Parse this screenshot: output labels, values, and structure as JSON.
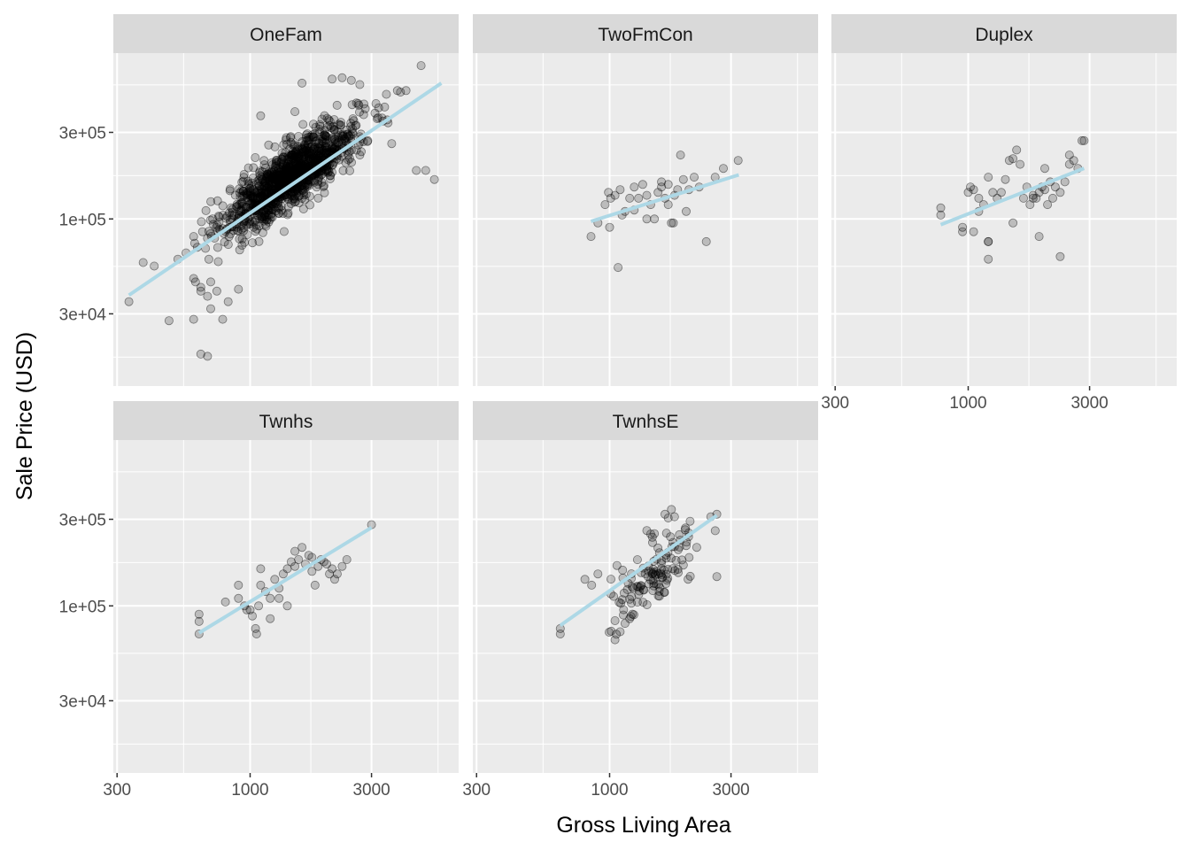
{
  "chart_data": {
    "type": "scatter",
    "facet_by": "building type",
    "xlabel": "Gross Living Area",
    "ylabel": "Sale Price (USD)",
    "x_scale": "log10",
    "y_scale": "log10",
    "xlim": [
      290,
      6600
    ],
    "ylim": [
      12000,
      820000
    ],
    "x_ticks": [
      {
        "value": 300,
        "label": "300"
      },
      {
        "value": 1000,
        "label": "1000"
      },
      {
        "value": 3000,
        "label": "3000"
      }
    ],
    "y_ticks": [
      {
        "value": 30000,
        "label": "3e+04"
      },
      {
        "value": 100000,
        "label": "1e+05"
      },
      {
        "value": 300000,
        "label": "3e+05"
      }
    ],
    "grid": true,
    "point_color": "#000000",
    "point_opacity": 0.2,
    "fit_line_color": "#add8e6",
    "panel_background": "#ebebeb",
    "strip_background": "#d9d9d9",
    "facets": [
      {
        "name": "OneFam",
        "fit_line": [
          [
            334,
            38000
          ],
          [
            5642,
            560000
          ]
        ],
        "point_cloud": {
          "count": 1200,
          "log_x_mean": 3.16,
          "log_x_sd": 0.13,
          "slope": 0.97,
          "intercept": 2.17,
          "resid_sd": 0.085
        },
        "points": [
          [
            334,
            35000
          ],
          [
            480,
            27500
          ],
          [
            640,
            18000
          ],
          [
            680,
            17500
          ],
          [
            420,
            55000
          ],
          [
            520,
            60000
          ],
          [
            560,
            65000
          ],
          [
            600,
            47000
          ],
          [
            610,
            45000
          ],
          [
            640,
            42000
          ],
          [
            680,
            37500
          ],
          [
            700,
            45000
          ],
          [
            740,
            40000
          ],
          [
            640,
            40000
          ],
          [
            380,
            57500
          ],
          [
            600,
            28000
          ],
          [
            700,
            32000
          ],
          [
            780,
            28000
          ],
          [
            820,
            35000
          ],
          [
            900,
            41000
          ],
          [
            600,
            80000
          ],
          [
            650,
            85000
          ],
          [
            4500,
            185000
          ],
          [
            4900,
            185000
          ],
          [
            5300,
            165000
          ],
          [
            4700,
            700000
          ],
          [
            3200,
            410000
          ],
          [
            3600,
            260000
          ],
          [
            2900,
            270000
          ],
          [
            2500,
            580000
          ],
          [
            2700,
            550000
          ],
          [
            2300,
            600000
          ],
          [
            2100,
            590000
          ],
          [
            3900,
            500000
          ],
          [
            4100,
            510000
          ],
          [
            1500,
            390000
          ],
          [
            1600,
            560000
          ],
          [
            1100,
            370000
          ],
          [
            2800,
            430000
          ],
          [
            3300,
            360000
          ]
        ]
      },
      {
        "name": "TwoFmCon",
        "fit_line": [
          [
            845,
            97000
          ],
          [
            3219,
            175000
          ]
        ],
        "points": [
          [
            845,
            80000
          ],
          [
            1080,
            54000
          ],
          [
            960,
            120000
          ],
          [
            990,
            140000
          ],
          [
            1010,
            130000
          ],
          [
            1050,
            135000
          ],
          [
            1100,
            145000
          ],
          [
            1150,
            110000
          ],
          [
            1200,
            130000
          ],
          [
            1250,
            150000
          ],
          [
            1300,
            130000
          ],
          [
            1350,
            155000
          ],
          [
            1400,
            135000
          ],
          [
            1450,
            120000
          ],
          [
            1500,
            100000
          ],
          [
            1550,
            140000
          ],
          [
            1600,
            150000
          ],
          [
            1650,
            130000
          ],
          [
            1700,
            120000
          ],
          [
            1750,
            95000
          ],
          [
            1780,
            95000
          ],
          [
            1800,
            135000
          ],
          [
            1850,
            145000
          ],
          [
            1900,
            225000
          ],
          [
            1950,
            165000
          ],
          [
            2000,
            110000
          ],
          [
            2050,
            145000
          ],
          [
            2150,
            170000
          ],
          [
            2250,
            150000
          ],
          [
            2400,
            75000
          ],
          [
            2600,
            170000
          ],
          [
            2800,
            190000
          ],
          [
            3200,
            210000
          ],
          [
            1000,
            90000
          ],
          [
            1120,
            105000
          ],
          [
            1250,
            112000
          ],
          [
            1400,
            100000
          ],
          [
            1600,
            160000
          ],
          [
            1700,
            155000
          ],
          [
            900,
            95000
          ]
        ]
      },
      {
        "name": "Duplex",
        "fit_line": [
          [
            780,
            93000
          ],
          [
            2854,
            190000
          ]
        ],
        "points": [
          [
            780,
            105000
          ],
          [
            780,
            115000
          ],
          [
            950,
            85000
          ],
          [
            950,
            90000
          ],
          [
            1000,
            140000
          ],
          [
            1020,
            150000
          ],
          [
            1050,
            145000
          ],
          [
            1100,
            130000
          ],
          [
            1100,
            110000
          ],
          [
            1150,
            120000
          ],
          [
            1200,
            60000
          ],
          [
            1200,
            75000
          ],
          [
            1200,
            75000
          ],
          [
            1250,
            140000
          ],
          [
            1300,
            130000
          ],
          [
            1350,
            140000
          ],
          [
            1400,
            165000
          ],
          [
            1450,
            210000
          ],
          [
            1500,
            215000
          ],
          [
            1550,
            240000
          ],
          [
            1600,
            200000
          ],
          [
            1650,
            130000
          ],
          [
            1700,
            150000
          ],
          [
            1750,
            120000
          ],
          [
            1800,
            135000
          ],
          [
            1850,
            130000
          ],
          [
            1900,
            140000
          ],
          [
            1950,
            150000
          ],
          [
            2000,
            145000
          ],
          [
            2050,
            120000
          ],
          [
            2100,
            160000
          ],
          [
            2150,
            130000
          ],
          [
            2200,
            150000
          ],
          [
            2300,
            140000
          ],
          [
            2400,
            160000
          ],
          [
            2500,
            200000
          ],
          [
            2600,
            210000
          ],
          [
            2700,
            190000
          ],
          [
            2800,
            270000
          ],
          [
            2854,
            270000
          ],
          [
            2300,
            62000
          ],
          [
            1900,
            80000
          ],
          [
            2000,
            190000
          ],
          [
            1500,
            95000
          ],
          [
            1050,
            85000
          ],
          [
            1200,
            170000
          ],
          [
            2500,
            225000
          ],
          [
            1800,
            130000
          ]
        ]
      },
      {
        "name": "Twnhs",
        "fit_line": [
          [
            630,
            71000
          ],
          [
            3000,
            270000
          ]
        ],
        "points": [
          [
            630,
            70000
          ],
          [
            630,
            82000
          ],
          [
            630,
            90000
          ],
          [
            800,
            105000
          ],
          [
            900,
            110000
          ],
          [
            950,
            100000
          ],
          [
            970,
            95000
          ],
          [
            1000,
            95000
          ],
          [
            1020,
            88000
          ],
          [
            1050,
            75000
          ],
          [
            1060,
            70000
          ],
          [
            1080,
            100000
          ],
          [
            1100,
            130000
          ],
          [
            1100,
            160000
          ],
          [
            1150,
            120000
          ],
          [
            1200,
            110000
          ],
          [
            1250,
            140000
          ],
          [
            1300,
            125000
          ],
          [
            1350,
            150000
          ],
          [
            1400,
            160000
          ],
          [
            1450,
            175000
          ],
          [
            1500,
            200000
          ],
          [
            1550,
            180000
          ],
          [
            1600,
            210000
          ],
          [
            1650,
            170000
          ],
          [
            1700,
            190000
          ],
          [
            1750,
            155000
          ],
          [
            1800,
            130000
          ],
          [
            1850,
            165000
          ],
          [
            1900,
            180000
          ],
          [
            1950,
            175000
          ],
          [
            2000,
            170000
          ],
          [
            2050,
            150000
          ],
          [
            2100,
            160000
          ],
          [
            2150,
            140000
          ],
          [
            2200,
            150000
          ],
          [
            2300,
            165000
          ],
          [
            2400,
            180000
          ],
          [
            3000,
            280000
          ],
          [
            1300,
            110000
          ],
          [
            1400,
            100000
          ],
          [
            1500,
            165000
          ],
          [
            1750,
            185000
          ],
          [
            900,
            130000
          ],
          [
            1200,
            85000
          ]
        ]
      },
      {
        "name": "TwnhsE",
        "fit_line": [
          [
            640,
            78000
          ],
          [
            2638,
            315000
          ]
        ],
        "point_cloud": {
          "count": 120,
          "log_x_mean": 3.18,
          "log_x_sd": 0.09,
          "slope": 1.0,
          "intercept": 2.0,
          "resid_sd": 0.09
        },
        "points": [
          [
            640,
            70000
          ],
          [
            640,
            75000
          ],
          [
            1050,
            65000
          ],
          [
            1100,
            72000
          ],
          [
            1150,
            80000
          ],
          [
            2638,
            145000
          ],
          [
            2638,
            320000
          ],
          [
            2500,
            310000
          ],
          [
            2200,
            210000
          ],
          [
            1800,
            310000
          ],
          [
            1650,
            320000
          ],
          [
            1700,
            305000
          ],
          [
            1750,
            340000
          ],
          [
            1500,
            250000
          ],
          [
            1400,
            260000
          ],
          [
            1200,
            85000
          ],
          [
            900,
            150000
          ],
          [
            850,
            130000
          ],
          [
            800,
            140000
          ],
          [
            2000,
            215000
          ]
        ]
      }
    ]
  }
}
